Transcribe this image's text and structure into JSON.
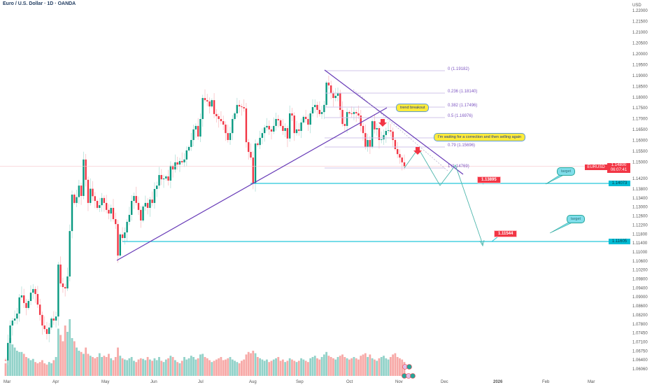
{
  "header": {
    "title": "Euro / U.S. Dollar · 1D · OANDA",
    "currency": "USD"
  },
  "price_tags": {
    "symbol": "EURUSD",
    "last_price": "1.14800",
    "countdown": "06:07:41",
    "level_upper": "1.14073",
    "level_lower": "1.11605"
  },
  "annotations": {
    "trend_breakout": "trend breakout",
    "waiting": "I'm waiting for a correction and then selling again",
    "target_1": "target",
    "target_2": "target",
    "price_label_1": "1.13895",
    "price_label_2": "1.11544"
  },
  "fib_levels": [
    {
      "label": "0 (1.19182)",
      "price": 1.19182
    },
    {
      "label": "0.236 (1.18140)",
      "price": 1.1814
    },
    {
      "label": "0.382 (1.17496)",
      "price": 1.17496
    },
    {
      "label": "0.5 (1.16976)",
      "price": 1.16976
    },
    {
      "label": "",
      "price": 1.16
    },
    {
      "label": "0.79 (1.15696)",
      "price": 1.15696
    },
    {
      "label": "1 (1.14769)",
      "price": 1.14769
    }
  ],
  "colors": {
    "up": "#089981",
    "down": "#f23645",
    "vol_up": "#92d2c9",
    "vol_down": "#f7a9a7",
    "trend": "#673ab7",
    "level": "#26c6da",
    "fib": "#d1c4e9",
    "path": "#4db6ac"
  },
  "chart_data": {
    "type": "candlestick",
    "title": "Euro / U.S. Dollar · 1D · OANDA",
    "ylabel": "USD",
    "y_ticks": [
      "1.22000",
      "1.21500",
      "1.21000",
      "1.20500",
      "1.20000",
      "1.19500",
      "1.19000",
      "1.18500",
      "1.18000",
      "1.17500",
      "1.17000",
      "1.16500",
      "1.16000",
      "1.15500",
      "1.15000",
      "1.14200",
      "1.13800",
      "1.13400",
      "1.13000",
      "1.12600",
      "1.12200",
      "1.11800",
      "1.11400",
      "1.11000",
      "1.10600",
      "1.10200",
      "1.09800",
      "1.09400",
      "1.09000",
      "1.08600",
      "1.08200",
      "1.07800",
      "1.07450",
      "1.07100",
      "1.06750",
      "1.06400",
      "1.06060"
    ],
    "x_ticks": [
      "Mar",
      "Apr",
      "May",
      "Jun",
      "Jul",
      "Aug",
      "Sep",
      "Oct",
      "Nov",
      "Dec",
      "2026",
      "Feb",
      "Mar"
    ],
    "first_open": 1.064,
    "closes": [
      1.0638,
      1.0706,
      1.0774,
      1.0795,
      1.0804,
      1.0826,
      1.0898,
      1.0907,
      1.0873,
      1.0851,
      1.0882,
      1.0919,
      1.0935,
      1.0913,
      1.0866,
      1.082,
      1.0774,
      1.076,
      1.0741,
      1.0766,
      1.0804,
      1.0795,
      1.0813,
      1.1044,
      1.096,
      1.0944,
      1.0938,
      1.0991,
      1.1193,
      1.1355,
      1.1318,
      1.1344,
      1.1393,
      1.1349,
      1.1512,
      1.1415,
      1.1318,
      1.1381,
      1.1348,
      1.1327,
      1.1296,
      1.1308,
      1.134,
      1.1318,
      1.1287,
      1.1271,
      1.1296,
      1.1246,
      1.1224,
      1.1084,
      1.1178,
      1.1162,
      1.1187,
      1.1234,
      1.1265,
      1.1327,
      1.1349,
      1.1318,
      1.1287,
      1.124,
      1.1302,
      1.1318,
      1.1296,
      1.1333,
      1.1318,
      1.138,
      1.1393,
      1.1437,
      1.1417,
      1.142,
      1.143,
      1.1412,
      1.1482,
      1.1464,
      1.1499,
      1.1488,
      1.1505,
      1.1499,
      1.1512,
      1.1554,
      1.157,
      1.1602,
      1.1651,
      1.1667,
      1.1618,
      1.1699,
      1.1796,
      1.1786,
      1.178,
      1.1757,
      1.1786,
      1.1722,
      1.1712,
      1.1699,
      1.1689,
      1.1673,
      1.1634,
      1.1602,
      1.1634,
      1.1699,
      1.1725,
      1.1764,
      1.1757,
      1.1754,
      1.1748,
      1.1592,
      1.1547,
      1.1521,
      1.1401,
      1.1586,
      1.1579,
      1.1612,
      1.1634,
      1.166,
      1.1667,
      1.1651,
      1.1641,
      1.1667,
      1.1699,
      1.1693,
      1.1667,
      1.1644,
      1.1657,
      1.1609,
      1.1725,
      1.1715,
      1.1634,
      1.1651,
      1.1644,
      1.1683,
      1.1709,
      1.1699,
      1.1673,
      1.1725,
      1.1754,
      1.1764,
      1.1741,
      1.1722,
      1.1731,
      1.1764,
      1.1867,
      1.1854,
      1.1819,
      1.1796,
      1.1806,
      1.1819,
      1.1741,
      1.1676,
      1.1667,
      1.1731,
      1.1725,
      1.1722,
      1.1731,
      1.1725,
      1.1715,
      1.1667,
      1.1634,
      1.157,
      1.1602,
      1.157,
      1.1689,
      1.1651,
      1.1657,
      1.1602,
      1.1605,
      1.1625,
      1.1644,
      1.1647,
      1.1641,
      1.1602,
      1.156,
      1.1537,
      1.1521,
      1.1499,
      1.1478
    ],
    "volume": [
      20,
      25,
      60,
      50,
      45,
      40,
      38,
      38,
      35,
      30,
      28,
      25,
      27,
      22,
      20,
      22,
      25,
      20,
      18,
      22,
      20,
      25,
      30,
      75,
      65,
      55,
      80,
      70,
      90,
      60,
      55,
      45,
      40,
      38,
      35,
      45,
      35,
      32,
      30,
      28,
      30,
      36,
      30,
      32,
      30,
      35,
      28,
      25,
      30,
      45,
      32,
      28,
      26,
      25,
      28,
      30,
      24,
      22,
      26,
      28,
      27,
      25,
      30,
      26,
      24,
      28,
      25,
      30,
      24,
      22,
      26,
      28,
      32,
      30,
      25,
      22,
      20,
      24,
      30,
      26,
      28,
      32,
      30,
      26,
      28,
      34,
      35,
      30,
      28,
      25,
      22,
      24,
      26,
      28,
      30,
      25,
      26,
      28,
      30,
      26,
      24,
      22,
      20,
      24,
      26,
      34,
      38,
      36,
      40,
      36,
      30,
      28,
      26,
      24,
      26,
      22,
      24,
      26,
      28,
      30,
      24,
      26,
      22,
      24,
      28,
      26,
      24,
      22,
      24,
      28,
      26,
      24,
      22,
      28,
      30,
      32,
      28,
      26,
      30,
      34,
      38,
      32,
      30,
      28,
      26,
      30,
      32,
      34,
      30,
      28,
      26,
      28,
      30,
      28,
      26,
      32,
      34,
      36,
      30,
      34,
      28,
      26,
      24,
      28,
      30,
      32,
      28,
      26,
      30,
      34,
      36,
      30,
      28,
      26,
      22
    ],
    "current_price": 1.148,
    "horizontal_levels": [
      1.14073,
      1.11605
    ]
  }
}
